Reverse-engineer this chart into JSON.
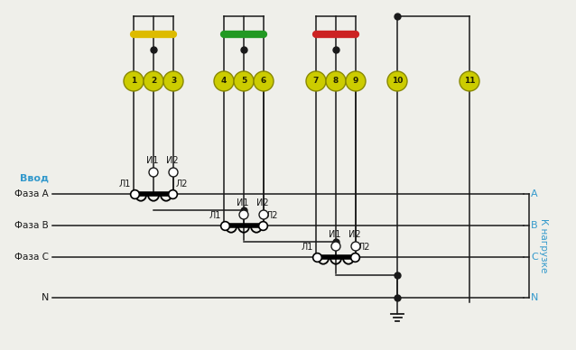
{
  "bg_color": "#efefea",
  "fig_width": 6.38,
  "fig_height": 3.88,
  "dpi": 100,
  "line_color": "#1a1a1a",
  "blue_text_color": "#3399cc",
  "yellow_badge_color": "#cccc00",
  "fuse_yellow": "#ddbb00",
  "fuse_green": "#229922",
  "fuse_red": "#cc2222",
  "right_label_color": "#3399cc",
  "terminal_numbers": [
    "1",
    "2",
    "3",
    "4",
    "5",
    "6",
    "7",
    "8",
    "9",
    "10",
    "11"
  ]
}
